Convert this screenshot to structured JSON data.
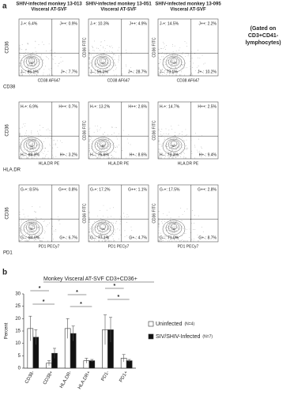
{
  "panel_a": {
    "label": "a",
    "note": [
      "(Gated on",
      "CD3+CD41-",
      "lymphocytes)"
    ],
    "columns": [
      [
        "SHIV-infected monkey 13-013",
        "Visceral AT-SVF"
      ],
      [
        "SHIV-infected monkey 13-051",
        "Visceral AT-SVF"
      ],
      [
        "SHIV-infected monkey 13-095",
        "Visceral AT-SVF"
      ]
    ],
    "outer_y_label": "CD36",
    "inner_y_label": "CD36 FITC",
    "rows": [
      {
        "outer_x_label": "CD38",
        "x_label": "CD38 AF647",
        "plots": [
          {
            "ul": "J-+: 6.4%",
            "ur": "J++: 0.9%",
            "ll": "J--: 85.1%",
            "lr": "J+-: 7.7%"
          },
          {
            "ul": "J-+: 10.3%",
            "ur": "J++: 4.9%",
            "ll": "J--: 56.1%",
            "lr": "J+-: 28.7%"
          },
          {
            "ul": "J-+: 14.5%",
            "ur": "J++: 2.2%",
            "ll": "J--: 73.1%",
            "lr": "J+-: 10.2%"
          }
        ]
      },
      {
        "outer_x_label": "HLA.DR",
        "x_label": "HLA.DR PE",
        "plots": [
          {
            "ul": "H-+: 6.9%",
            "ur": "H++: 0.7%",
            "ll": "H--: 89.3%",
            "lr": "H+-: 3.2%"
          },
          {
            "ul": "H-+: 13.2%",
            "ur": "H++: 2.6%",
            "ll": "H--: 75.6%",
            "lr": "H+-: 8.6%"
          },
          {
            "ul": "H-+: 14.7%",
            "ur": "H++: 2.5%",
            "ll": "H--: 73.3%",
            "lr": "H+-: 9.4%"
          }
        ]
      },
      {
        "outer_x_label": "PD1",
        "x_label": "PD1 PECy7",
        "plots": [
          {
            "ul": "G-+: 8.5%",
            "ur": "G++: 0.8%",
            "ll": "G--: 84.0%",
            "lr": "G+-: 6.7%"
          },
          {
            "ul": "G-+: 17.2%",
            "ur": "G++: 1.1%",
            "ll": "G--: 77.1%",
            "lr": "G+-: 4.7%"
          },
          {
            "ul": "G-+: 17.5%",
            "ur": "G++: 2.8%",
            "ll": "G--: 71.0%",
            "lr": "G+-: 8.7%"
          }
        ]
      }
    ]
  },
  "chart_data": {
    "type": "bar",
    "panel_label": "b",
    "title": "Monkey Visceral AT-SVF CD3+CD36+",
    "y_label": "Percent",
    "categories": [
      "CD38-",
      "CD38+",
      "HLA.DR-",
      "HLA.DR+",
      "PD1-",
      "PD1+"
    ],
    "series": [
      {
        "name": "Uninfected",
        "n_label": "(N=4)",
        "color": "#ffffff",
        "values": [
          16,
          2,
          16,
          3,
          15.5,
          4
        ],
        "errors": [
          5,
          1,
          4,
          1,
          6,
          1.5
        ]
      },
      {
        "name": "SIV/SHIV-Infected",
        "n_label": "(N=7)",
        "color": "#111111",
        "values": [
          12.5,
          6,
          14,
          3,
          15.5,
          3
        ],
        "errors": [
          3,
          2,
          3,
          0.5,
          5,
          0.5
        ]
      }
    ],
    "ylim": [
      0,
      30
    ],
    "yticks": [
      0,
      5,
      10,
      15,
      20,
      25,
      30
    ],
    "significance": [
      "*",
      "*",
      "*",
      "*",
      "*",
      "*"
    ]
  }
}
